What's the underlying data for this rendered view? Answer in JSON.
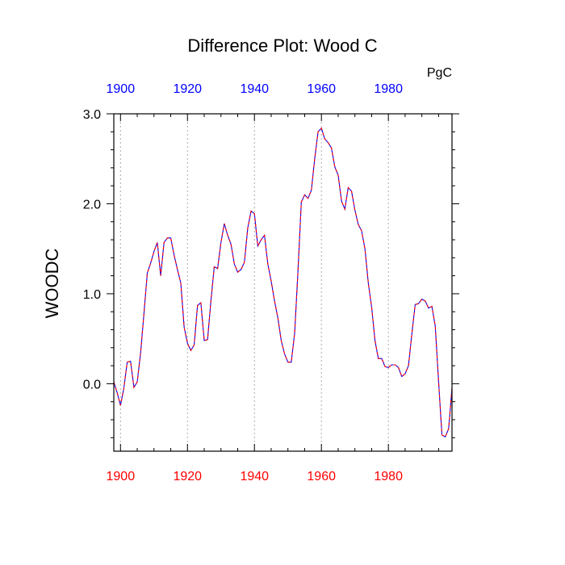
{
  "chart_data": {
    "type": "line",
    "title": "Difference Plot: Wood C",
    "units_label": "PgC",
    "ylabel": "WOODC",
    "xlim": [
      1898,
      1999
    ],
    "ylim": [
      -0.75,
      3.0
    ],
    "x_ticks": [
      1900,
      1920,
      1940,
      1960,
      1980
    ],
    "y_ticks": [
      0.0,
      1.0,
      2.0,
      3.0
    ],
    "y_tick_labels": [
      "0.0",
      "1.0",
      "2.0",
      "3.0"
    ],
    "top_tick_labels": [
      "1900",
      "1920",
      "1940",
      "1960",
      "1980"
    ],
    "bottom_tick_labels": [
      "1900",
      "1920",
      "1940",
      "1960",
      "1980"
    ],
    "grid": "vertical dotted at major x ticks",
    "top_axis_color": "#0000ff",
    "bottom_axis_color": "#ff0000",
    "series": [
      {
        "color_dash": "#ff0000",
        "color_gap": "#0000ff",
        "x": [
          1898,
          1899,
          1900,
          1901,
          1902,
          1903,
          1904,
          1905,
          1906,
          1907,
          1908,
          1909,
          1910,
          1911,
          1912,
          1913,
          1914,
          1915,
          1916,
          1917,
          1918,
          1919,
          1920,
          1921,
          1922,
          1923,
          1924,
          1925,
          1926,
          1927,
          1928,
          1929,
          1930,
          1931,
          1932,
          1933,
          1934,
          1935,
          1936,
          1937,
          1938,
          1939,
          1940,
          1941,
          1942,
          1943,
          1944,
          1945,
          1946,
          1947,
          1948,
          1949,
          1950,
          1951,
          1952,
          1953,
          1954,
          1955,
          1956,
          1957,
          1958,
          1959,
          1960,
          1961,
          1962,
          1963,
          1964,
          1965,
          1966,
          1967,
          1968,
          1969,
          1970,
          1971,
          1972,
          1973,
          1974,
          1975,
          1976,
          1977,
          1978,
          1979,
          1980,
          1981,
          1982,
          1983,
          1984,
          1985,
          1986,
          1987,
          1988,
          1989,
          1990,
          1991,
          1992,
          1993,
          1994,
          1995,
          1996,
          1997,
          1998,
          1999
        ],
        "y": [
          0.02,
          -0.1,
          -0.24,
          -0.05,
          0.24,
          0.25,
          -0.04,
          0.02,
          0.34,
          0.78,
          1.23,
          1.34,
          1.47,
          1.57,
          1.2,
          1.57,
          1.62,
          1.62,
          1.43,
          1.27,
          1.12,
          0.63,
          0.45,
          0.37,
          0.43,
          0.87,
          0.9,
          0.48,
          0.49,
          0.92,
          1.3,
          1.28,
          1.57,
          1.78,
          1.65,
          1.55,
          1.33,
          1.24,
          1.27,
          1.35,
          1.73,
          1.92,
          1.89,
          1.53,
          1.6,
          1.65,
          1.33,
          1.14,
          0.92,
          0.73,
          0.48,
          0.33,
          0.24,
          0.24,
          0.56,
          1.25,
          2.02,
          2.1,
          2.06,
          2.15,
          2.5,
          2.8,
          2.84,
          2.72,
          2.68,
          2.62,
          2.41,
          2.32,
          2.03,
          1.94,
          2.18,
          2.14,
          1.93,
          1.77,
          1.7,
          1.5,
          1.12,
          0.85,
          0.48,
          0.28,
          0.28,
          0.19,
          0.18,
          0.21,
          0.21,
          0.18,
          0.08,
          0.11,
          0.2,
          0.55,
          0.88,
          0.89,
          0.94,
          0.92,
          0.84,
          0.86,
          0.64,
          0.02,
          -0.57,
          -0.59,
          -0.5,
          -0.05
        ]
      }
    ]
  }
}
